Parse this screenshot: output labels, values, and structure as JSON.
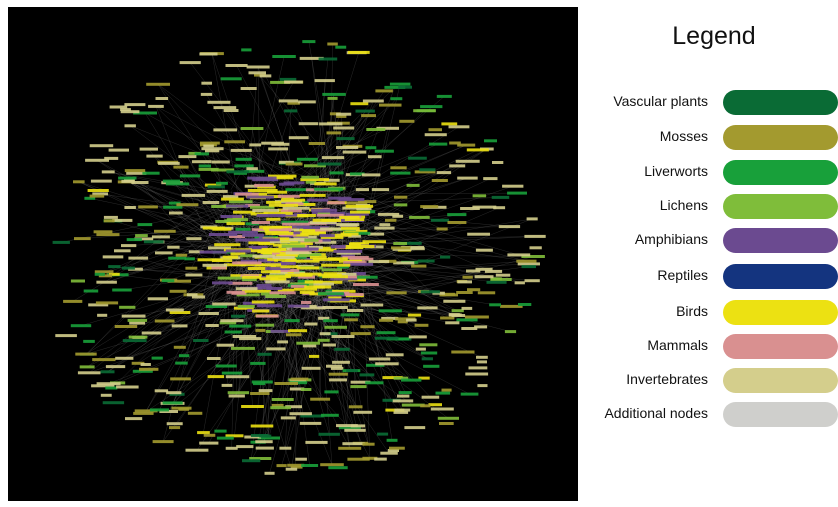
{
  "legend": {
    "title": "Legend",
    "items": [
      {
        "label": "Vascular plants",
        "color": "#0a6b35"
      },
      {
        "label": "Mosses",
        "color": "#a39a2f"
      },
      {
        "label": "Liverworts",
        "color": "#18a03a"
      },
      {
        "label": "Lichens",
        "color": "#7fbd3a"
      },
      {
        "label": "Amphibians",
        "color": "#6b4a90"
      },
      {
        "label": "Reptiles",
        "color": "#14347f"
      },
      {
        "label": "Birds",
        "color": "#ece112"
      },
      {
        "label": "Mammals",
        "color": "#d99090"
      },
      {
        "label": "Invertebrates",
        "color": "#d4ce8c"
      },
      {
        "label": "Additional nodes",
        "color": "#cfcfcc"
      }
    ]
  },
  "network": {
    "background": "#000000",
    "edge_color": "#9a9a9a"
  }
}
